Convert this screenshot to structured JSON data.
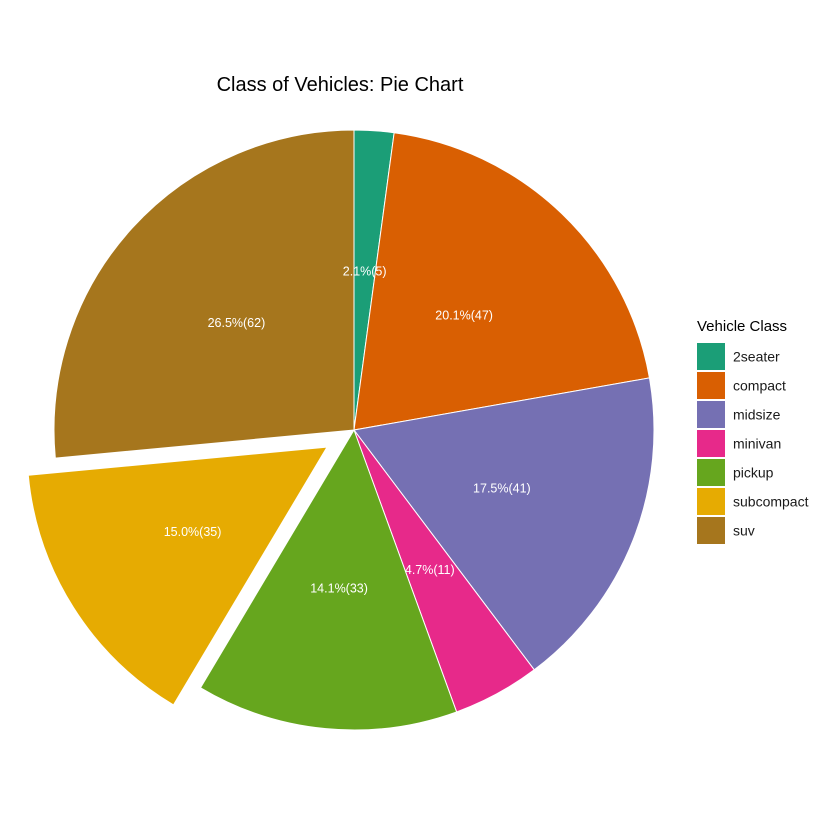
{
  "chart_data": {
    "type": "pie",
    "title": "Class of Vehicles: Pie Chart",
    "legend": {
      "title": "Vehicle Class",
      "placement": "right"
    },
    "slices": [
      {
        "category": "2seater",
        "count": 5,
        "percent": 2.1,
        "label": "2.1%(5)",
        "color": "#1B9E77",
        "exploded": false
      },
      {
        "category": "compact",
        "count": 47,
        "percent": 20.1,
        "label": "20.1%(47)",
        "color": "#D95F02",
        "exploded": false
      },
      {
        "category": "midsize",
        "count": 41,
        "percent": 17.5,
        "label": "17.5%(41)",
        "color": "#7570B3",
        "exploded": false
      },
      {
        "category": "minivan",
        "count": 11,
        "percent": 4.7,
        "label": "4.7%(11)",
        "color": "#E7298A",
        "exploded": false
      },
      {
        "category": "pickup",
        "count": 33,
        "percent": 14.1,
        "label": "14.1%(33)",
        "color": "#66A61E",
        "exploded": false
      },
      {
        "category": "subcompact",
        "count": 35,
        "percent": 15.0,
        "label": "15.0%(35)",
        "color": "#E6AB02",
        "exploded": true
      },
      {
        "category": "suv",
        "count": 62,
        "percent": 26.5,
        "label": "26.5%(62)",
        "color": "#A6761D",
        "exploded": false
      }
    ]
  }
}
